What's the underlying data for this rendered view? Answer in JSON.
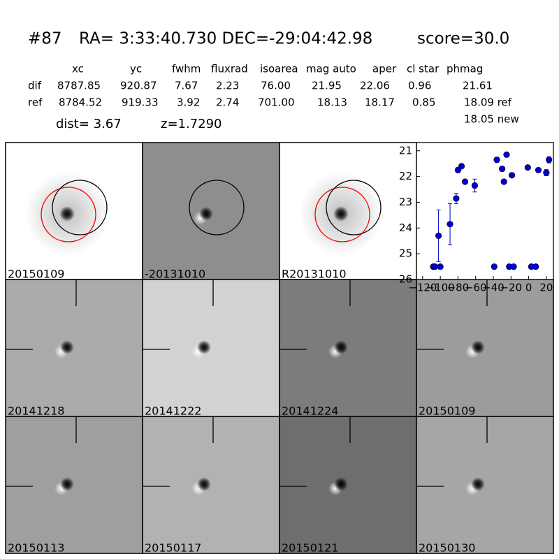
{
  "header": {
    "id": "#87",
    "coords": "RA= 3:33:40.730 DEC=-29:04:42.98",
    "score": "score=30.0"
  },
  "table": {
    "columns": [
      "xc",
      "yc",
      "fwhm",
      "fluxrad",
      "isoarea",
      "mag auto",
      "aper",
      "cl star",
      "phmag"
    ],
    "rows": [
      {
        "label": "dif",
        "cells": [
          "8787.85",
          "920.87",
          "7.67",
          "2.23",
          "76.00",
          "21.95",
          "22.06",
          "0.96",
          "21.61"
        ]
      },
      {
        "label": "ref",
        "cells": [
          "8784.52",
          "919.33",
          "3.92",
          "2.74",
          "701.00",
          "18.13",
          "18.17",
          "0.85",
          "18.09 ref"
        ]
      }
    ],
    "extra": "18.05 new"
  },
  "dist": "dist=  3.67",
  "redshift": "z=1.7290",
  "panels": [
    {
      "label": "20150109",
      "background": "#ffffff"
    },
    {
      "label": "-20131010",
      "background": "#8e8e8e"
    },
    {
      "label": "R20131010",
      "background": "#ffffff"
    },
    {
      "label": "20141218",
      "background": "#ababab"
    },
    {
      "label": "20141222",
      "background": "#d2d2d2"
    },
    {
      "label": "20141224",
      "background": "#7c7c7c"
    },
    {
      "label": "20150109",
      "background": "#9c9c9c",
      "color": "#ff0000"
    },
    {
      "label": "20150113",
      "background": "#9f9f9f"
    },
    {
      "label": "20150117",
      "background": "#b2b2b2"
    },
    {
      "label": "20150121",
      "background": "#6e6e6e"
    },
    {
      "label": "20150130",
      "background": "#a6a6a6"
    }
  ],
  "chart_data": {
    "type": "scatter",
    "color": "#0000cc",
    "xlim": [
      -127,
      28
    ],
    "ylim": [
      26,
      20.68
    ],
    "xticks": [
      {
        "value": -120,
        "label": "−120"
      },
      {
        "value": -100,
        "label": "−100"
      },
      {
        "value": -80,
        "label": "−80"
      },
      {
        "value": -60,
        "label": "−60"
      },
      {
        "value": -40,
        "label": "−40"
      },
      {
        "value": -20,
        "label": "−20"
      },
      0,
      20
    ],
    "yticks": [
      21,
      22,
      23,
      24,
      25,
      26
    ],
    "x": [
      -108,
      -106,
      -102,
      -100,
      -89,
      -82,
      -80,
      -76,
      -72,
      -61,
      -39,
      -36,
      -30,
      -28,
      -25,
      -22,
      -19,
      -17,
      -1,
      3,
      8,
      11,
      20,
      23
    ],
    "values": [
      25.5,
      25.5,
      24.3,
      25.5,
      23.85,
      22.85,
      21.75,
      21.6,
      22.2,
      22.35,
      25.5,
      21.35,
      21.7,
      22.2,
      21.15,
      25.5,
      21.95,
      25.5,
      21.65,
      25.5,
      25.5,
      21.75,
      21.85,
      21.35
    ],
    "errors": [
      0.05,
      0.05,
      1.0,
      0.05,
      0.8,
      0.2,
      0.1,
      0.08,
      0.08,
      0.25,
      0.05,
      0.1,
      0.08,
      0.08,
      0.06,
      0.05,
      0.08,
      0.05,
      0.06,
      0.05,
      0.05,
      0.08,
      0.12,
      0.12
    ]
  }
}
